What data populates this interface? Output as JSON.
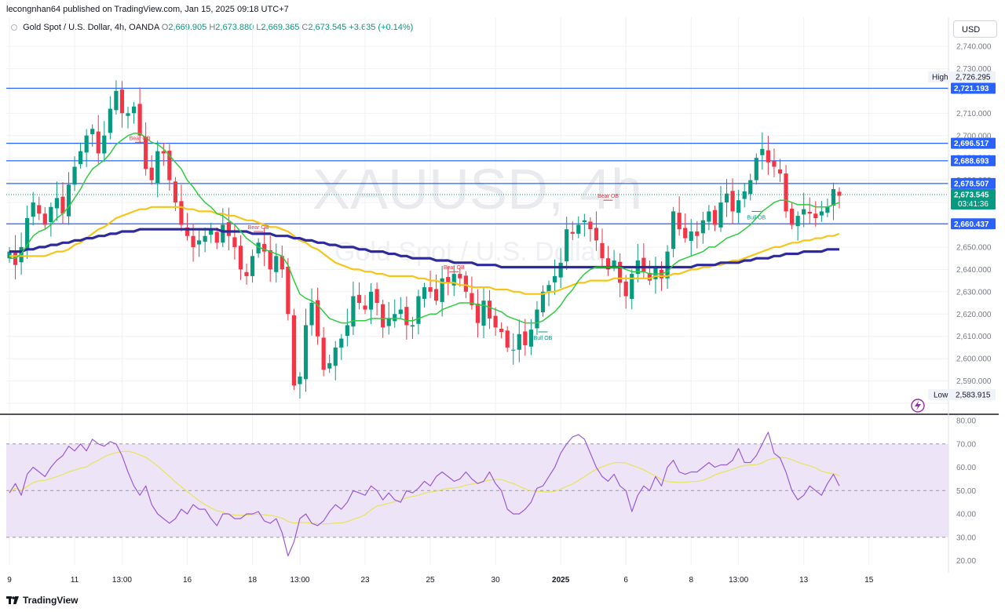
{
  "header": {
    "publish_line": "lecongnhan64 published on TradingView.com, Jan 15, 2025 09:18 UTC+7",
    "symbol_desc": "Gold Spot / U.S. Dollar, 4h, OANDA",
    "ohlc": [
      {
        "label": "O",
        "value": "2,669.905"
      },
      {
        "label": "H",
        "value": "2,673.880"
      },
      {
        "label": "L",
        "value": "2,669.365"
      },
      {
        "label": "C",
        "value": "2,673.545"
      }
    ],
    "change": "+3.635 (+0.14%)"
  },
  "currency_button": "USD",
  "watermark": {
    "ticker": "XAUUSD, 4h",
    "name": "Gold Spot / U.S. Dollar"
  },
  "branding": "TradingView",
  "colors": {
    "up": "#089981",
    "down": "#f23645",
    "level_line": "#2962ff",
    "ema_fast": "#2ecc40",
    "ema_mid": "#f5c518",
    "ema_slow": "#2e2a9e",
    "rsi": "#9b59d6",
    "rsi_ma": "#e8e35a",
    "rsi_band": "#ede4f7"
  },
  "chart_data": {
    "type": "candlestick",
    "symbol": "XAUUSD",
    "timeframe": "4h",
    "ylim": [
      2580,
      2745
    ],
    "price_ticks": [
      "2,740.000",
      "2,730.000",
      "2,720.000",
      "2,710.000",
      "2,700.000",
      "2,690.000",
      "2,680.000",
      "2,670.000",
      "2,660.000",
      "2,650.000",
      "2,640.000",
      "2,630.000",
      "2,620.000",
      "2,610.000",
      "2,600.000",
      "2,590.000",
      "2,580.000"
    ],
    "price_tick_values": [
      2740,
      2730,
      2720,
      2710,
      2700,
      2690,
      2680,
      2670,
      2660,
      2650,
      2640,
      2630,
      2620,
      2610,
      2600,
      2590,
      2580
    ],
    "x_ticks": [
      "9",
      "11",
      "13:00",
      "16",
      "18",
      "13:00",
      "23",
      "25",
      "30",
      "2025",
      "6",
      "8",
      "13:00",
      "13",
      "15"
    ],
    "x_tick_index": [
      0,
      11,
      19,
      30,
      41,
      49,
      60,
      71,
      82,
      93,
      104,
      115,
      123,
      134,
      145
    ],
    "horizontal_levels": [
      {
        "label": "2,721.193",
        "value": 2721.193
      },
      {
        "label": "2,696.517",
        "value": 2696.517
      },
      {
        "label": "2,688.693",
        "value": 2688.693
      },
      {
        "label": "2,678.507",
        "value": 2678.507
      },
      {
        "label": "2,660.437",
        "value": 2660.437
      }
    ],
    "high_marker": {
      "label": "High",
      "value_text": "2,726.295",
      "value": 2726.295
    },
    "low_marker": {
      "label": "Low",
      "value_text": "2,583.915",
      "value": 2583.915
    },
    "last_price": {
      "value_text": "2,673.545",
      "countdown": "03:41:36",
      "value": 2673.545
    },
    "annotations": [
      {
        "text": "Bear OB",
        "bar": 22,
        "price": 2697,
        "kind": "bear"
      },
      {
        "text": "Bear OB",
        "bar": 42,
        "price": 2657,
        "kind": "bear"
      },
      {
        "text": "Bear OB",
        "bar": 75,
        "price": 2639,
        "kind": "bear"
      },
      {
        "text": "Bull OB",
        "bar": 90,
        "price": 2612,
        "kind": "bull"
      },
      {
        "text": "Bear OB",
        "bar": 101,
        "price": 2671,
        "kind": "bear"
      },
      {
        "text": "Bull OB",
        "bar": 126,
        "price": 2666,
        "kind": "bull"
      }
    ],
    "candles_close": [
      2648,
      2642,
      2650,
      2663,
      2670,
      2665,
      2660,
      2668,
      2672,
      2665,
      2678,
      2686,
      2693,
      2700,
      2703,
      2692,
      2700,
      2712,
      2720,
      2710,
      2710,
      2713,
      2700,
      2685,
      2680,
      2693,
      2692,
      2680,
      2670,
      2660,
      2655,
      2650,
      2653,
      2655,
      2658,
      2652,
      2660,
      2655,
      2650,
      2640,
      2637,
      2646,
      2652,
      2648,
      2640,
      2646,
      2640,
      2620,
      2588,
      2592,
      2615,
      2625,
      2610,
      2595,
      2598,
      2605,
      2609,
      2615,
      2628,
      2625,
      2622,
      2630,
      2625,
      2614,
      2618,
      2620,
      2622,
      2615,
      2615,
      2628,
      2632,
      2630,
      2626,
      2636,
      2634,
      2638,
      2636,
      2630,
      2624,
      2616,
      2626,
      2618,
      2614,
      2612,
      2605,
      2604,
      2611,
      2606,
      2613,
      2622,
      2630,
      2633,
      2637,
      2643,
      2658,
      2656,
      2660,
      2662,
      2658,
      2653,
      2645,
      2640,
      2644,
      2634,
      2628,
      2638,
      2644,
      2639,
      2635,
      2641,
      2636,
      2648,
      2666,
      2658,
      2654,
      2657,
      2655,
      2662,
      2666,
      2660,
      2670,
      2674,
      2666,
      2671,
      2675,
      2680,
      2690,
      2694,
      2688,
      2686,
      2683,
      2666,
      2660,
      2664,
      2667,
      2665,
      2663,
      2666,
      2668,
      2676,
      2673
    ],
    "ema_fast": [
      2645,
      2645,
      2647,
      2651,
      2655,
      2657,
      2658,
      2660,
      2663,
      2665,
      2668,
      2672,
      2676,
      2681,
      2685,
      2687,
      2689,
      2692,
      2696,
      2698,
      2700,
      2701,
      2701,
      2699,
      2697,
      2696,
      2694,
      2691,
      2688,
      2685,
      2680,
      2677,
      2673,
      2670,
      2668,
      2665,
      2664,
      2662,
      2660,
      2657,
      2654,
      2652,
      2650,
      2649,
      2648,
      2647,
      2646,
      2642,
      2635,
      2629,
      2627,
      2626,
      2624,
      2621,
      2618,
      2617,
      2616,
      2616,
      2617,
      2617,
      2617,
      2618,
      2618,
      2618,
      2618,
      2618,
      2618,
      2617,
      2617,
      2618,
      2619,
      2620,
      2620,
      2622,
      2623,
      2624,
      2625,
      2625,
      2625,
      2624,
      2624,
      2623,
      2622,
      2621,
      2619,
      2618,
      2617,
      2616,
      2616,
      2616,
      2617,
      2619,
      2621,
      2624,
      2628,
      2631,
      2635,
      2638,
      2640,
      2641,
      2641,
      2641,
      2641,
      2641,
      2640,
      2639,
      2639,
      2639,
      2638,
      2638,
      2638,
      2639,
      2642,
      2644,
      2645,
      2646,
      2647,
      2648,
      2650,
      2650,
      2652,
      2654,
      2655,
      2656,
      2658,
      2660,
      2663,
      2666,
      2668,
      2670,
      2671,
      2671,
      2670,
      2669,
      2669,
      2669,
      2668,
      2668,
      2668,
      2669,
      2670
    ],
    "ema_mid": [
      2646,
      2646,
      2646,
      2646,
      2646,
      2646,
      2646,
      2647,
      2648,
      2648,
      2649,
      2651,
      2652,
      2654,
      2656,
      2658,
      2659,
      2661,
      2663,
      2664,
      2665,
      2666,
      2667,
      2667,
      2668,
      2668,
      2668,
      2668,
      2668,
      2668,
      2667,
      2667,
      2666,
      2666,
      2666,
      2665,
      2665,
      2664,
      2664,
      2663,
      2662,
      2662,
      2661,
      2660,
      2659,
      2659,
      2658,
      2657,
      2655,
      2653,
      2652,
      2650,
      2649,
      2647,
      2645,
      2643,
      2642,
      2641,
      2640,
      2640,
      2639,
      2639,
      2638,
      2638,
      2637,
      2637,
      2637,
      2637,
      2637,
      2636,
      2636,
      2635,
      2635,
      2634,
      2634,
      2634,
      2633,
      2633,
      2632,
      2632,
      2632,
      2632,
      2631,
      2631,
      2631,
      2630,
      2630,
      2629,
      2629,
      2629,
      2629,
      2630,
      2630,
      2631,
      2632,
      2633,
      2634,
      2634,
      2635,
      2635,
      2635,
      2635,
      2636,
      2636,
      2636,
      2636,
      2636,
      2636,
      2636,
      2637,
      2637,
      2637,
      2638,
      2638,
      2639,
      2640,
      2640,
      2641,
      2641,
      2642,
      2642,
      2643,
      2644,
      2644,
      2645,
      2646,
      2647,
      2648,
      2649,
      2650,
      2650,
      2651,
      2652,
      2652,
      2653,
      2653,
      2654,
      2654,
      2655,
      2655,
      2656
    ],
    "ema_slow": [
      2648,
      2648,
      2648,
      2649,
      2649,
      2650,
      2650,
      2651,
      2651,
      2652,
      2652,
      2653,
      2653,
      2654,
      2654,
      2655,
      2655,
      2656,
      2656,
      2657,
      2657,
      2657,
      2658,
      2658,
      2658,
      2658,
      2658,
      2658,
      2658,
      2658,
      2658,
      2658,
      2658,
      2658,
      2658,
      2658,
      2657,
      2657,
      2657,
      2657,
      2657,
      2656,
      2656,
      2656,
      2656,
      2655,
      2655,
      2655,
      2654,
      2654,
      2653,
      2653,
      2652,
      2652,
      2651,
      2651,
      2650,
      2650,
      2650,
      2649,
      2649,
      2648,
      2648,
      2648,
      2647,
      2647,
      2646,
      2646,
      2645,
      2645,
      2645,
      2645,
      2644,
      2644,
      2644,
      2643,
      2643,
      2643,
      2643,
      2642,
      2642,
      2642,
      2642,
      2641,
      2641,
      2641,
      2641,
      2641,
      2641,
      2641,
      2641,
      2641,
      2641,
      2641,
      2641,
      2641,
      2641,
      2641,
      2641,
      2641,
      2641,
      2641,
      2641,
      2641,
      2641,
      2641,
      2641,
      2641,
      2641,
      2641,
      2641,
      2641,
      2641,
      2641,
      2641,
      2641,
      2642,
      2642,
      2642,
      2642,
      2643,
      2643,
      2643,
      2643,
      2644,
      2644,
      2645,
      2645,
      2645,
      2646,
      2646,
      2647,
      2647,
      2647,
      2648,
      2648,
      2648,
      2648,
      2649,
      2649,
      2649
    ],
    "rsi": {
      "ylim": [
        15,
        82
      ],
      "ticks": [
        "80.00",
        "70.00",
        "60.00",
        "50.00",
        "40.00",
        "30.00",
        "20.00"
      ],
      "tick_values": [
        80,
        70,
        60,
        50,
        40,
        30,
        20
      ],
      "band": [
        30,
        70
      ],
      "mid": 50,
      "values": [
        49,
        53,
        48,
        57,
        60,
        58,
        56,
        60,
        63,
        65,
        69,
        67,
        70,
        67,
        72,
        70,
        69,
        71,
        70,
        65,
        58,
        52,
        48,
        52,
        44,
        40,
        38,
        36,
        38,
        42,
        40,
        44,
        42,
        42,
        38,
        35,
        40,
        40,
        38,
        38,
        40,
        40,
        41,
        37,
        36,
        38,
        32,
        22,
        28,
        38,
        40,
        36,
        35,
        37,
        41,
        44,
        42,
        45,
        50,
        49,
        48,
        52,
        50,
        46,
        49,
        46,
        45,
        50,
        49,
        51,
        54,
        52,
        56,
        58,
        56,
        54,
        55,
        58,
        55,
        53,
        54,
        58,
        53,
        50,
        42,
        40,
        40,
        42,
        45,
        51,
        52,
        56,
        60,
        66,
        70,
        73,
        74,
        72,
        66,
        60,
        56,
        54,
        57,
        52,
        50,
        41,
        48,
        52,
        50,
        56,
        52,
        60,
        63,
        58,
        57,
        58,
        58,
        60,
        62,
        60,
        61,
        61,
        63,
        68,
        62,
        62,
        65,
        70,
        75,
        66,
        64,
        58,
        50,
        46,
        48,
        52,
        50,
        48,
        53,
        57,
        52
      ]
    }
  }
}
